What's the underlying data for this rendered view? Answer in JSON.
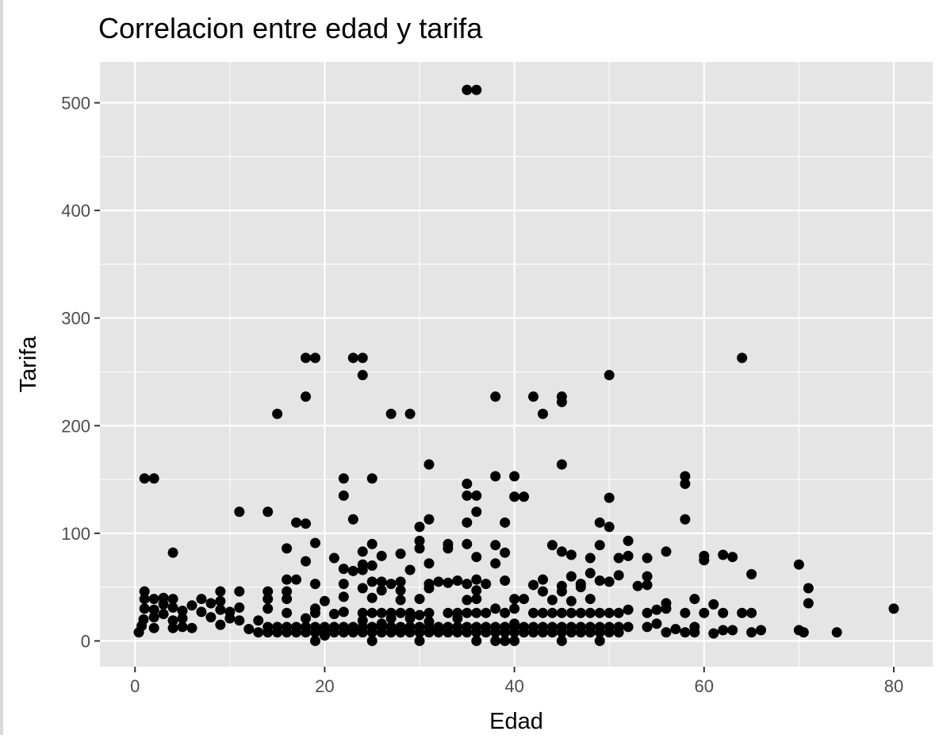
{
  "chart_data": {
    "type": "scatter",
    "title": "Correlacion entre edad y tarifa",
    "xlabel": "Edad",
    "ylabel": "Tarifa",
    "xlim": [
      -3.7,
      84.1
    ],
    "ylim": [
      -24,
      538
    ],
    "xticks": [
      0,
      20,
      40,
      60,
      80
    ],
    "yticks": [
      0,
      100,
      200,
      300,
      400,
      500
    ],
    "xminor": [
      10,
      30,
      50,
      70
    ],
    "yminor": [
      50,
      150,
      250,
      350,
      450
    ],
    "colors": {
      "panel": "#e5e5e5",
      "grid": "#ffffff",
      "point": "#000000",
      "tick_text": "#4d4d4d"
    },
    "points": [
      [
        35,
        512
      ],
      [
        36,
        512
      ],
      [
        18,
        263
      ],
      [
        19,
        263
      ],
      [
        23,
        263
      ],
      [
        24,
        263
      ],
      [
        64,
        263
      ],
      [
        24,
        247
      ],
      [
        50,
        247
      ],
      [
        18,
        227
      ],
      [
        38,
        227
      ],
      [
        42,
        227
      ],
      [
        45,
        227
      ],
      [
        45,
        222
      ],
      [
        15,
        211
      ],
      [
        27,
        211
      ],
      [
        29,
        211
      ],
      [
        43,
        211
      ],
      [
        31,
        164
      ],
      [
        45,
        164
      ],
      [
        1,
        151
      ],
      [
        2,
        151
      ],
      [
        22,
        151
      ],
      [
        25,
        151
      ],
      [
        38,
        153
      ],
      [
        40,
        153
      ],
      [
        58,
        153
      ],
      [
        35,
        146
      ],
      [
        58,
        146
      ],
      [
        22,
        135
      ],
      [
        35,
        135
      ],
      [
        36,
        135
      ],
      [
        40,
        134
      ],
      [
        41,
        134
      ],
      [
        50,
        133
      ],
      [
        11,
        120
      ],
      [
        14,
        120
      ],
      [
        36,
        120
      ],
      [
        23,
        113
      ],
      [
        31,
        113
      ],
      [
        58,
        113
      ],
      [
        17,
        110
      ],
      [
        18,
        109
      ],
      [
        30,
        106
      ],
      [
        35,
        110
      ],
      [
        39,
        110
      ],
      [
        49,
        110
      ],
      [
        50,
        106
      ],
      [
        19,
        91
      ],
      [
        25,
        90
      ],
      [
        30,
        93
      ],
      [
        33,
        90
      ],
      [
        35,
        90
      ],
      [
        38,
        89
      ],
      [
        44,
        89
      ],
      [
        49,
        89
      ],
      [
        52,
        93
      ],
      [
        4,
        82
      ],
      [
        16,
        86
      ],
      [
        24,
        83
      ],
      [
        26,
        79
      ],
      [
        28,
        81
      ],
      [
        30,
        86
      ],
      [
        33,
        86
      ],
      [
        36,
        78
      ],
      [
        39,
        82
      ],
      [
        45,
        83
      ],
      [
        46,
        80
      ],
      [
        54,
        77
      ],
      [
        56,
        83
      ],
      [
        60,
        79
      ],
      [
        62,
        80
      ],
      [
        63,
        78
      ],
      [
        18,
        74
      ],
      [
        21,
        77
      ],
      [
        24,
        71
      ],
      [
        25,
        70
      ],
      [
        31,
        72
      ],
      [
        38,
        72
      ],
      [
        48,
        77
      ],
      [
        51,
        77
      ],
      [
        52,
        79
      ],
      [
        60,
        75
      ],
      [
        70,
        71
      ],
      [
        16,
        57
      ],
      [
        17,
        57
      ],
      [
        22,
        67
      ],
      [
        23,
        65
      ],
      [
        24,
        66
      ],
      [
        29,
        66
      ],
      [
        33,
        54
      ],
      [
        34,
        56
      ],
      [
        36,
        57
      ],
      [
        39,
        56
      ],
      [
        43,
        57
      ],
      [
        46,
        60
      ],
      [
        47,
        53
      ],
      [
        48,
        63
      ],
      [
        49,
        56
      ],
      [
        50,
        55
      ],
      [
        51,
        61
      ],
      [
        53,
        51
      ],
      [
        54,
        60
      ],
      [
        65,
        62
      ],
      [
        19,
        53
      ],
      [
        22,
        53
      ],
      [
        25,
        55
      ],
      [
        26,
        55
      ],
      [
        27,
        53
      ],
      [
        28,
        55
      ],
      [
        31,
        53
      ],
      [
        32,
        55
      ],
      [
        35,
        53
      ],
      [
        37,
        53
      ],
      [
        42,
        52
      ],
      [
        45,
        51
      ],
      [
        47,
        50
      ],
      [
        54,
        52
      ],
      [
        71,
        49
      ],
      [
        1,
        46
      ],
      [
        9,
        46
      ],
      [
        11,
        46
      ],
      [
        14,
        46
      ],
      [
        16,
        46
      ],
      [
        24,
        49
      ],
      [
        26,
        47
      ],
      [
        28,
        47
      ],
      [
        31,
        49
      ],
      [
        36,
        47
      ],
      [
        43,
        46
      ],
      [
        45,
        46
      ],
      [
        1,
        39
      ],
      [
        2,
        39
      ],
      [
        3,
        40
      ],
      [
        4,
        39
      ],
      [
        6,
        33
      ],
      [
        7,
        39
      ],
      [
        8,
        35
      ],
      [
        9,
        37
      ],
      [
        10,
        27
      ],
      [
        14,
        39
      ],
      [
        16,
        39
      ],
      [
        19,
        30
      ],
      [
        20,
        37
      ],
      [
        22,
        41
      ],
      [
        25,
        40
      ],
      [
        28,
        38
      ],
      [
        30,
        39
      ],
      [
        35,
        38
      ],
      [
        36,
        39
      ],
      [
        40,
        39
      ],
      [
        41,
        39
      ],
      [
        44,
        38
      ],
      [
        46,
        37
      ],
      [
        48,
        39
      ],
      [
        56,
        35
      ],
      [
        59,
        39
      ],
      [
        61,
        34
      ],
      [
        71,
        35
      ],
      [
        0.4,
        8
      ],
      [
        0.7,
        14
      ],
      [
        0.9,
        20
      ],
      [
        1,
        30
      ],
      [
        2,
        12
      ],
      [
        2,
        22
      ],
      [
        2,
        29
      ],
      [
        3,
        25
      ],
      [
        3,
        34
      ],
      [
        4,
        12
      ],
      [
        4,
        19
      ],
      [
        4,
        31
      ],
      [
        5,
        13
      ],
      [
        5,
        21
      ],
      [
        5,
        28
      ],
      [
        6,
        12
      ],
      [
        7,
        27
      ],
      [
        8,
        22
      ],
      [
        9,
        15
      ],
      [
        9,
        29
      ],
      [
        10,
        21
      ],
      [
        11,
        19
      ],
      [
        11,
        31
      ],
      [
        12,
        11
      ],
      [
        13,
        8
      ],
      [
        13,
        19
      ],
      [
        14,
        8
      ],
      [
        14,
        13
      ],
      [
        14,
        30
      ],
      [
        15,
        8
      ],
      [
        15,
        13
      ],
      [
        16,
        8
      ],
      [
        16,
        13
      ],
      [
        16,
        26
      ],
      [
        17,
        8
      ],
      [
        17,
        13
      ],
      [
        18,
        8
      ],
      [
        18,
        13
      ],
      [
        18,
        21
      ],
      [
        19,
        0
      ],
      [
        19,
        8
      ],
      [
        19,
        13
      ],
      [
        19,
        26
      ],
      [
        20,
        5
      ],
      [
        20,
        8
      ],
      [
        20,
        10
      ],
      [
        20,
        13
      ],
      [
        21,
        8
      ],
      [
        21,
        13
      ],
      [
        21,
        25
      ],
      [
        22,
        8
      ],
      [
        22,
        13
      ],
      [
        22,
        27
      ],
      [
        23,
        8
      ],
      [
        23,
        10
      ],
      [
        23,
        13
      ],
      [
        24,
        8
      ],
      [
        24,
        13
      ],
      [
        24,
        19
      ],
      [
        24,
        26
      ],
      [
        25,
        0
      ],
      [
        25,
        8
      ],
      [
        25,
        13
      ],
      [
        25,
        26
      ],
      [
        26,
        8
      ],
      [
        26,
        13
      ],
      [
        26,
        16
      ],
      [
        26,
        26
      ],
      [
        27,
        8
      ],
      [
        27,
        13
      ],
      [
        27,
        21
      ],
      [
        27,
        26
      ],
      [
        28,
        8
      ],
      [
        28,
        10
      ],
      [
        28,
        13
      ],
      [
        28,
        26
      ],
      [
        29,
        8
      ],
      [
        29,
        13
      ],
      [
        29,
        21
      ],
      [
        29,
        26
      ],
      [
        30,
        0
      ],
      [
        30,
        8
      ],
      [
        30,
        13
      ],
      [
        30,
        24
      ],
      [
        31,
        8
      ],
      [
        31,
        13
      ],
      [
        31,
        18
      ],
      [
        31,
        26
      ],
      [
        32,
        8
      ],
      [
        32,
        10
      ],
      [
        32,
        13
      ],
      [
        33,
        8
      ],
      [
        33,
        13
      ],
      [
        33,
        26
      ],
      [
        34,
        8
      ],
      [
        34,
        13
      ],
      [
        34,
        21
      ],
      [
        34,
        26
      ],
      [
        35,
        8
      ],
      [
        35,
        13
      ],
      [
        35,
        26
      ],
      [
        36,
        0
      ],
      [
        36,
        8
      ],
      [
        36,
        13
      ],
      [
        36,
        26
      ],
      [
        37,
        8
      ],
      [
        37,
        13
      ],
      [
        37,
        26
      ],
      [
        38,
        0
      ],
      [
        38,
        8
      ],
      [
        38,
        13
      ],
      [
        38,
        30
      ],
      [
        39,
        0
      ],
      [
        39,
        8
      ],
      [
        39,
        13
      ],
      [
        39,
        26
      ],
      [
        40,
        0
      ],
      [
        40,
        8
      ],
      [
        40,
        13
      ],
      [
        40,
        16
      ],
      [
        40,
        30
      ],
      [
        41,
        8
      ],
      [
        41,
        13
      ],
      [
        42,
        8
      ],
      [
        42,
        13
      ],
      [
        42,
        26
      ],
      [
        43,
        8
      ],
      [
        43,
        13
      ],
      [
        43,
        26
      ],
      [
        44,
        8
      ],
      [
        44,
        13
      ],
      [
        44,
        26
      ],
      [
        45,
        0
      ],
      [
        45,
        8
      ],
      [
        45,
        13
      ],
      [
        45,
        26
      ],
      [
        46,
        8
      ],
      [
        46,
        13
      ],
      [
        46,
        26
      ],
      [
        47,
        8
      ],
      [
        47,
        13
      ],
      [
        47,
        26
      ],
      [
        48,
        8
      ],
      [
        48,
        13
      ],
      [
        48,
        26
      ],
      [
        49,
        0
      ],
      [
        49,
        8
      ],
      [
        49,
        13
      ],
      [
        49,
        26
      ],
      [
        50,
        8
      ],
      [
        50,
        13
      ],
      [
        50,
        26
      ],
      [
        51,
        8
      ],
      [
        51,
        13
      ],
      [
        51,
        26
      ],
      [
        52,
        13
      ],
      [
        52,
        29
      ],
      [
        54,
        13
      ],
      [
        54,
        26
      ],
      [
        55,
        16
      ],
      [
        55,
        29
      ],
      [
        56,
        8
      ],
      [
        56,
        30
      ],
      [
        57,
        11
      ],
      [
        58,
        8
      ],
      [
        58,
        26
      ],
      [
        59,
        8
      ],
      [
        59,
        13
      ],
      [
        60,
        26
      ],
      [
        61,
        7
      ],
      [
        62,
        10
      ],
      [
        62,
        26
      ],
      [
        63,
        10
      ],
      [
        64,
        26
      ],
      [
        65,
        8
      ],
      [
        65,
        26
      ],
      [
        66,
        10
      ],
      [
        70,
        10
      ],
      [
        70.5,
        8
      ],
      [
        74,
        8
      ],
      [
        80,
        30
      ]
    ]
  }
}
